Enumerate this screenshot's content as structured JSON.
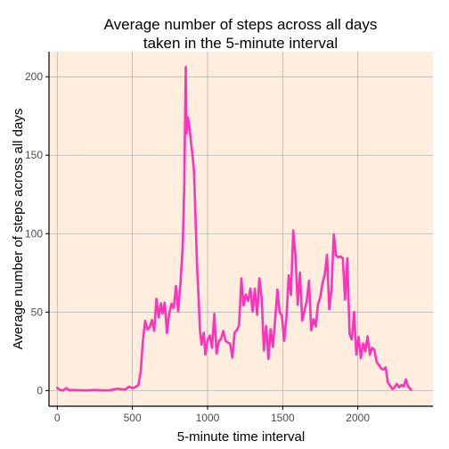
{
  "chart_data": {
    "type": "line",
    "title_lines": [
      "Average number of steps across all days",
      "taken in the 5-minute interval"
    ],
    "xlabel": "5-minute time interval",
    "ylabel": "Average number of steps across all days",
    "xlim": [
      -55,
      2500
    ],
    "ylim": [
      -10,
      216
    ],
    "xticks": [
      0,
      500,
      1000,
      1500,
      2000
    ],
    "yticks": [
      0,
      50,
      100,
      150,
      200
    ],
    "grid": true,
    "legend": "none",
    "colors": {
      "panel_background": "#ffeedd",
      "grid": "#b3b3b3",
      "line": "#ff33bb",
      "axis": "#000000"
    },
    "series": [
      {
        "x": [
          0,
          20,
          40,
          60,
          80,
          100,
          150,
          200,
          250,
          300,
          350,
          400,
          450,
          480,
          500,
          520,
          540,
          555,
          570,
          585,
          600,
          615,
          630,
          645,
          660,
          675,
          690,
          700,
          715,
          730,
          745,
          760,
          775,
          790,
          805,
          820,
          835,
          845,
          850,
          855,
          860,
          870,
          880,
          890,
          900,
          910,
          920,
          930,
          940,
          950,
          960,
          975,
          985,
          1000,
          1015,
          1030,
          1045,
          1060,
          1075,
          1090,
          1105,
          1120,
          1135,
          1150,
          1165,
          1180,
          1195,
          1210,
          1225,
          1240,
          1255,
          1270,
          1285,
          1300,
          1315,
          1330,
          1345,
          1360,
          1375,
          1390,
          1405,
          1420,
          1435,
          1450,
          1465,
          1480,
          1495,
          1510,
          1525,
          1540,
          1555,
          1570,
          1585,
          1600,
          1615,
          1630,
          1645,
          1660,
          1675,
          1690,
          1705,
          1720,
          1735,
          1750,
          1765,
          1780,
          1795,
          1810,
          1825,
          1840,
          1855,
          1870,
          1885,
          1900,
          1915,
          1930,
          1945,
          1960,
          1975,
          1990,
          2005,
          2020,
          2035,
          2050,
          2065,
          2080,
          2095,
          2110,
          2125,
          2140,
          2155,
          2170,
          2185,
          2200,
          2215,
          2230,
          2245,
          2260,
          2275,
          2290,
          2305,
          2320,
          2335,
          2355
        ],
        "y": [
          1.7,
          0.3,
          0.1,
          1.5,
          0.2,
          0.4,
          0.2,
          0.1,
          0.4,
          0.1,
          0.2,
          1.2,
          0.6,
          2.5,
          1.5,
          2.2,
          3.5,
          12,
          32,
          44.4,
          38.9,
          40.3,
          44.9,
          38.1,
          58.5,
          46.6,
          55.6,
          49,
          56,
          36.7,
          48.9,
          55.3,
          52.5,
          66.6,
          50.5,
          68.8,
          92,
          130,
          167.6,
          206.2,
          163.8,
          174,
          168,
          158,
          150,
          140,
          110,
          80,
          60,
          38,
          29.3,
          36.9,
          22.9,
          32,
          35,
          27.2,
          48.9,
          23.6,
          31.4,
          33,
          38,
          31.7,
          30.6,
          29.9,
          21,
          37,
          38.5,
          41.8,
          71.5,
          54.2,
          61.2,
          57,
          65,
          50.3,
          64.9,
          48.3,
          71.5,
          59.3,
          25.5,
          41.1,
          20.2,
          39.1,
          27.8,
          45.5,
          64.3,
          49.8,
          47.5,
          31.7,
          46.3,
          73.4,
          60.8,
          102.1,
          86.4,
          54.7,
          75.2,
          44.6,
          51,
          57,
          70,
          38.4,
          45.5,
          40.8,
          55,
          59.3,
          68.4,
          73.9,
          86.6,
          51.8,
          64.8,
          99.5,
          86.2,
          84.9,
          85.5,
          84.4,
          58,
          84.4,
          36,
          32.6,
          50.1,
          23,
          34.1,
          20.7,
          30,
          25,
          34.6,
          22.8,
          27.3,
          26,
          18.3,
          16.3,
          14,
          13.4,
          14.8,
          5.1,
          3.1,
          0.9,
          2.1,
          4.2,
          2.1,
          3.5,
          2.6,
          7.1,
          2.5,
          0.5
        ]
      }
    ]
  }
}
